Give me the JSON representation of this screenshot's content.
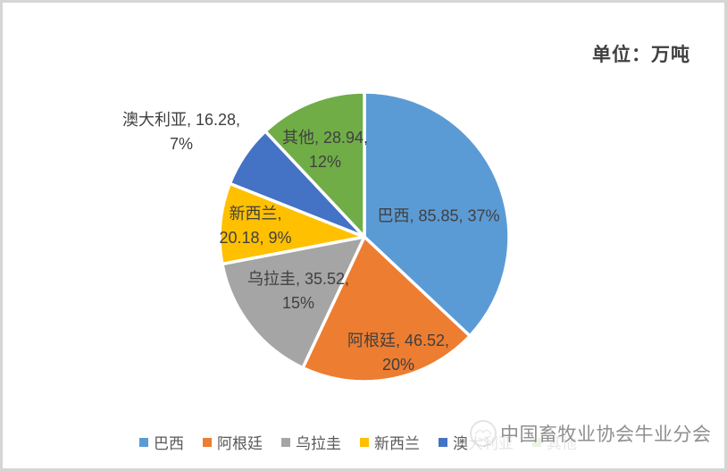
{
  "page": {
    "unit_label": "单位：万吨"
  },
  "chart_data": {
    "type": "pie",
    "title": "单位：万吨",
    "unit": "万吨",
    "categories": [
      "巴西",
      "阿根廷",
      "乌拉圭",
      "新西兰",
      "澳大利亚",
      "其他"
    ],
    "values": [
      85.85,
      46.52,
      35.52,
      20.18,
      16.28,
      28.94
    ],
    "percentages": [
      37,
      20,
      15,
      9,
      7,
      12
    ],
    "series": [
      {
        "name": "巴西",
        "value": 85.85,
        "pct": 37,
        "color": "#5B9BD5",
        "label_lines": [
          "巴西, 85.85, 37%"
        ]
      },
      {
        "name": "阿根廷",
        "value": 46.52,
        "pct": 20,
        "color": "#ED7D31",
        "label_lines": [
          "阿根廷, 46.52,",
          "20%"
        ]
      },
      {
        "name": "乌拉圭",
        "value": 35.52,
        "pct": 15,
        "color": "#A5A5A5",
        "label_lines": [
          "乌拉圭, 35.52,",
          "15%"
        ]
      },
      {
        "name": "新西兰",
        "value": 20.18,
        "pct": 9,
        "color": "#FFC000",
        "label_lines": [
          "新西兰,",
          "20.18, 9%"
        ]
      },
      {
        "name": "澳大利亚",
        "value": 16.28,
        "pct": 7,
        "color": "#4472C4",
        "label_lines": [
          "澳大利亚, 16.28,",
          "7%"
        ]
      },
      {
        "name": "其他",
        "value": 28.94,
        "pct": 12,
        "color": "#70AD47",
        "label_lines": [
          "其他, 28.94,",
          "12%"
        ]
      }
    ],
    "legend": [
      "巴西",
      "阿根廷",
      "乌拉圭",
      "新西兰",
      "澳大利亚",
      "其他"
    ],
    "legend_position": "bottom",
    "start_angle_deg": 0,
    "direction": "clockwise",
    "slice_border_color": "#FFFFFF",
    "label_text_color": "#404040"
  },
  "watermark": {
    "text": "中国畜牧业协会牛业分会",
    "logo": "caaa-round-logo"
  }
}
